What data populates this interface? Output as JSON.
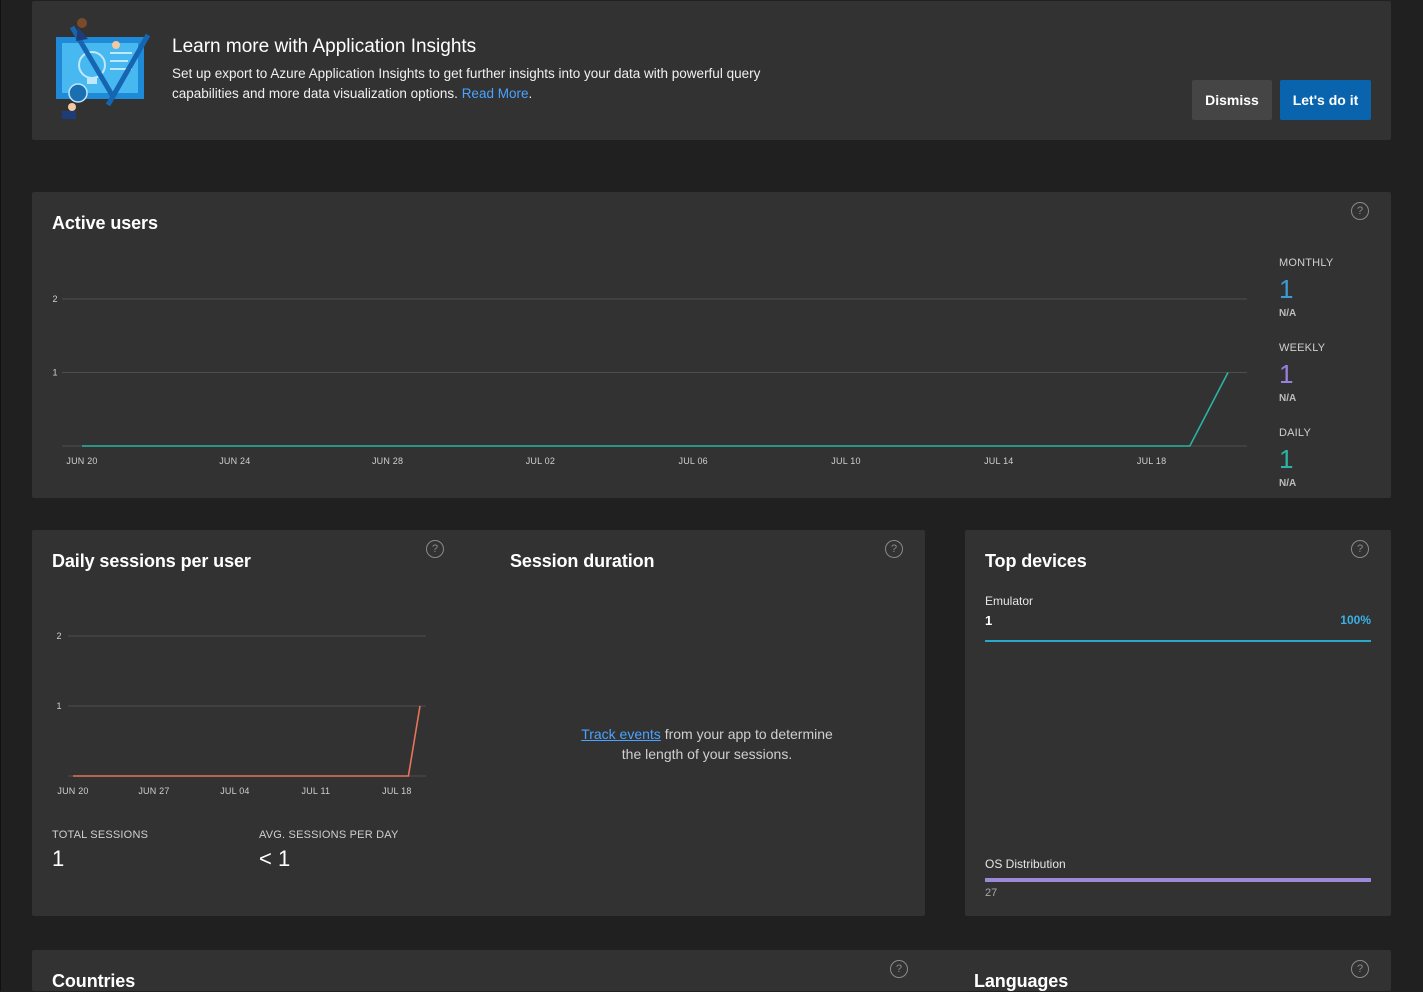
{
  "banner": {
    "title": "Learn more with Application Insights",
    "text": "Set up export to Azure Application Insights to get further insights into your data with powerful query capabilities and more data visualization options.",
    "link": "Read More",
    "dismiss": "Dismiss",
    "confirm": "Let's do it"
  },
  "active_users": {
    "title": "Active users",
    "help": "?",
    "stats": [
      {
        "label": "MONTHLY",
        "value": "1",
        "sub": "N/A",
        "color": "#3a9bd5"
      },
      {
        "label": "WEEKLY",
        "value": "1",
        "sub": "N/A",
        "color": "#9b7fe0"
      },
      {
        "label": "DAILY",
        "value": "1",
        "sub": "N/A",
        "color": "#2bb3a3"
      }
    ]
  },
  "daily_sessions": {
    "title": "Daily sessions per user",
    "help": "?",
    "total_label": "TOTAL SESSIONS",
    "total_value": "1",
    "avg_label": "AVG. SESSIONS PER DAY",
    "avg_value": "< 1"
  },
  "session_duration": {
    "title": "Session duration",
    "help": "?",
    "link": "Track events",
    "text_a": " from your app to determine",
    "text_b": "the length of your sessions."
  },
  "top_devices": {
    "title": "Top devices",
    "help": "?",
    "device_name": "Emulator",
    "device_count": "1",
    "device_pct": "100%",
    "os_label": "OS Distribution",
    "os_value": "27"
  },
  "countries": {
    "title": "Countries",
    "help": "?"
  },
  "languages": {
    "title": "Languages",
    "help": "?"
  },
  "chart_data": [
    {
      "type": "line",
      "title": "Active users",
      "x": [
        "JUN 20",
        "JUN 24",
        "JUN 28",
        "JUL 02",
        "JUL 06",
        "JUL 10",
        "JUL 14",
        "JUL 18"
      ],
      "yticks": [
        "2",
        "1"
      ],
      "ylim": [
        0,
        2
      ],
      "xlim": [
        "JUN 20",
        "JUL 20"
      ],
      "series": [
        {
          "color": "#2bb3a3",
          "points": [
            [
              "JUN 20",
              0
            ],
            [
              "JUL 19",
              0
            ],
            [
              "JUL 20",
              1
            ]
          ]
        }
      ],
      "grid": true
    },
    {
      "type": "line",
      "title": "Daily sessions per user",
      "x": [
        "JUN 20",
        "JUN 27",
        "JUL 04",
        "JUL 11",
        "JUL 18"
      ],
      "yticks": [
        "2",
        "1"
      ],
      "ylim": [
        0,
        2
      ],
      "xlim": [
        "JUN 20",
        "JUL 20"
      ],
      "series": [
        {
          "color": "#e8735a",
          "points": [
            [
              "JUN 20",
              0
            ],
            [
              "JUL 19",
              0
            ],
            [
              "JUL 20",
              1
            ]
          ]
        }
      ],
      "grid": true
    }
  ]
}
